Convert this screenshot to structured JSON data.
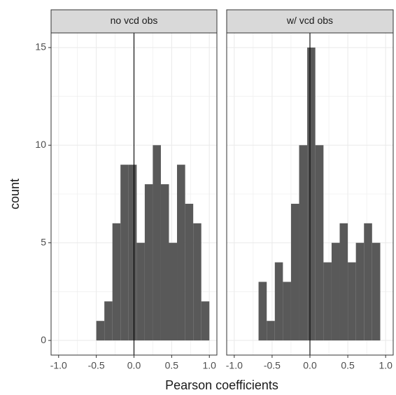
{
  "chart_data": [
    {
      "type": "histogram",
      "title": "no vcd obs",
      "y_label": "count",
      "x_label": "Pearson coefficients",
      "bins": [
        -1.0,
        -0.5,
        -0.393,
        -0.286,
        -0.179,
        -0.071,
        0.036,
        0.143,
        0.25,
        0.357,
        0.464,
        0.571,
        0.679,
        0.786,
        0.893,
        1.0
      ],
      "values": [
        0,
        1,
        2,
        6,
        9,
        9,
        5,
        8,
        10,
        8,
        5,
        9,
        7,
        6,
        2
      ],
      "color": "#595959",
      "vline": 0,
      "xlim": [
        -1.1,
        1.1
      ],
      "xticks": [
        {
          "value": -1.0,
          "label": "-1.0"
        },
        {
          "value": -0.5,
          "label": "-0.5"
        },
        {
          "value": 0,
          "label": "0.0"
        },
        {
          "value": 0.5,
          "label": "0.5"
        },
        {
          "value": 1.0,
          "label": "1.0"
        }
      ],
      "x_minor_ticks": [
        -0.75,
        -0.25,
        0.25,
        0.75
      ],
      "ylim": [
        -0.75,
        15.75
      ],
      "yticks": [
        0,
        5,
        10,
        15
      ],
      "y_minor_ticks": [
        2.5,
        7.5,
        12.5
      ],
      "grid": true
    },
    {
      "type": "histogram",
      "title": "w/ vcd obs",
      "bins": [
        -1.0,
        -0.679,
        -0.571,
        -0.464,
        -0.357,
        -0.25,
        -0.143,
        -0.036,
        0.071,
        0.179,
        0.286,
        0.393,
        0.5,
        0.607,
        0.714,
        0.821,
        0.929,
        1.036
      ],
      "values": [
        0,
        3,
        1,
        4,
        3,
        7,
        10,
        15,
        10,
        4,
        5,
        6,
        4,
        5,
        6,
        5,
        0
      ],
      "color": "#595959",
      "vline": 0,
      "xlim": [
        -1.1,
        1.1
      ],
      "xticks": [
        {
          "value": -1.0,
          "label": "-1.0"
        },
        {
          "value": -0.5,
          "label": "-0.5"
        },
        {
          "value": 0,
          "label": "0.0"
        },
        {
          "value": 0.5,
          "label": "0.5"
        },
        {
          "value": 1.0,
          "label": "1.0"
        }
      ],
      "x_minor_ticks": [
        -0.75,
        -0.25,
        0.25,
        0.75
      ],
      "ylim": [
        -0.75,
        15.75
      ],
      "yticks": [
        0,
        5,
        10,
        15
      ],
      "y_minor_ticks": [
        2.5,
        7.5,
        12.5
      ],
      "grid": true
    }
  ]
}
